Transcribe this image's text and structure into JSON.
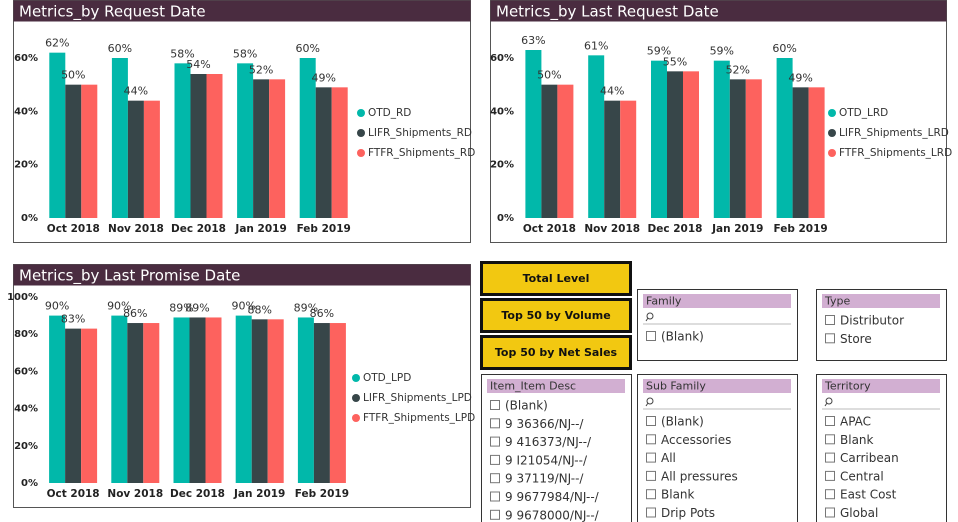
{
  "chart_data": [
    {
      "type": "bar",
      "title": "Metrics_by Request Date",
      "categories": [
        "Oct 2018",
        "Nov 2018",
        "Dec 2018",
        "Jan 2019",
        "Feb 2019"
      ],
      "series": [
        {
          "name": "OTD_RD",
          "color": "#01b8aa",
          "values": [
            62,
            60,
            58,
            58,
            60
          ],
          "value_labels": [
            "62%",
            "60%",
            "58%",
            "58%",
            "60%"
          ]
        },
        {
          "name": "LIFR_Shipments_RD",
          "color": "#374649",
          "values": [
            50,
            44,
            54,
            52,
            49
          ],
          "value_labels": [
            "50%",
            "44%",
            "54%",
            "52%",
            "49%"
          ]
        },
        {
          "name": "FTFR_Shipments_RD",
          "color": "#fd625e",
          "values": [
            50,
            44,
            54,
            52,
            49
          ]
        }
      ],
      "ylim": [
        0,
        72
      ],
      "yticks": [
        {
          "value": 0,
          "label": "0%"
        },
        {
          "value": 20,
          "label": "20%"
        },
        {
          "value": 40,
          "label": "40%"
        },
        {
          "value": 60,
          "label": "60%"
        }
      ],
      "legend": "right"
    },
    {
      "type": "bar",
      "title": "Metrics_by Last Request Date",
      "categories": [
        "Oct 2018",
        "Nov 2018",
        "Dec 2018",
        "Jan 2019",
        "Feb 2019"
      ],
      "series": [
        {
          "name": "OTD_LRD",
          "color": "#01b8aa",
          "values": [
            63,
            61,
            59,
            59,
            60
          ],
          "value_labels": [
            "63%",
            "61%",
            "59%",
            "59%",
            "60%"
          ]
        },
        {
          "name": "LIFR_Shipments_LRD",
          "color": "#374649",
          "values": [
            50,
            44,
            55,
            52,
            49
          ],
          "value_labels": [
            "50%",
            "44%",
            "55%",
            "52%",
            "49%"
          ]
        },
        {
          "name": "FTFR_Shipments_LRD",
          "color": "#fd625e",
          "values": [
            50,
            44,
            55,
            52,
            49
          ]
        }
      ],
      "ylim": [
        0,
        72
      ],
      "yticks": [
        {
          "value": 0,
          "label": "0%"
        },
        {
          "value": 20,
          "label": "20%"
        },
        {
          "value": 40,
          "label": "40%"
        },
        {
          "value": 60,
          "label": "60%"
        }
      ],
      "legend": "right"
    },
    {
      "type": "bar",
      "title": "Metrics_by Last Promise Date",
      "categories": [
        "Oct 2018",
        "Nov 2018",
        "Dec 2018",
        "Jan 2019",
        "Feb 2019"
      ],
      "series": [
        {
          "name": "OTD_LPD",
          "color": "#01b8aa",
          "values": [
            90,
            90,
            89,
            90,
            89
          ],
          "value_labels": [
            "90%",
            "90%",
            "89%",
            "90%",
            "89%"
          ]
        },
        {
          "name": "LIFR_Shipments_LPD",
          "color": "#374649",
          "values": [
            83,
            86,
            89,
            88,
            86
          ],
          "value_labels": [
            "83%",
            "86%",
            "89%",
            "88%",
            "86%"
          ]
        },
        {
          "name": "FTFR_Shipments_LPD",
          "color": "#fd625e",
          "values": [
            83,
            86,
            89,
            88,
            86
          ]
        }
      ],
      "ylim": [
        0,
        100
      ],
      "yticks": [
        {
          "value": 0,
          "label": "0%"
        },
        {
          "value": 20,
          "label": "20%"
        },
        {
          "value": 40,
          "label": "40%"
        },
        {
          "value": 60,
          "label": "60%"
        },
        {
          "value": 80,
          "label": "80%"
        },
        {
          "value": 100,
          "label": "100%"
        }
      ],
      "legend": "right"
    }
  ],
  "buttons": [
    "Total Level",
    "Top 50 by Volume",
    "Top 50 by Net Sales"
  ],
  "slicers": [
    {
      "title": "Family",
      "items": [
        "(Blank)"
      ]
    },
    {
      "title": "Type",
      "items": [
        "Distributor",
        "Store"
      ]
    },
    {
      "title": "Item_Item Desc",
      "items": [
        "(Blank)",
        "9 36366/NJ--/",
        "9 416373/NJ--/",
        "9 I21054/NJ--/",
        "9 37119/NJ--/",
        "9 9677984/NJ--/",
        "9 9678000/NJ--/"
      ]
    },
    {
      "title": "Sub Family",
      "items": [
        "(Blank)",
        "Accessories",
        "All",
        "All pressures",
        "Blank",
        "Drip Pots"
      ]
    },
    {
      "title": "Territory",
      "items": [
        "APAC",
        "Blank",
        "Carribean",
        "Central",
        "East Cost",
        "Global"
      ]
    }
  ]
}
